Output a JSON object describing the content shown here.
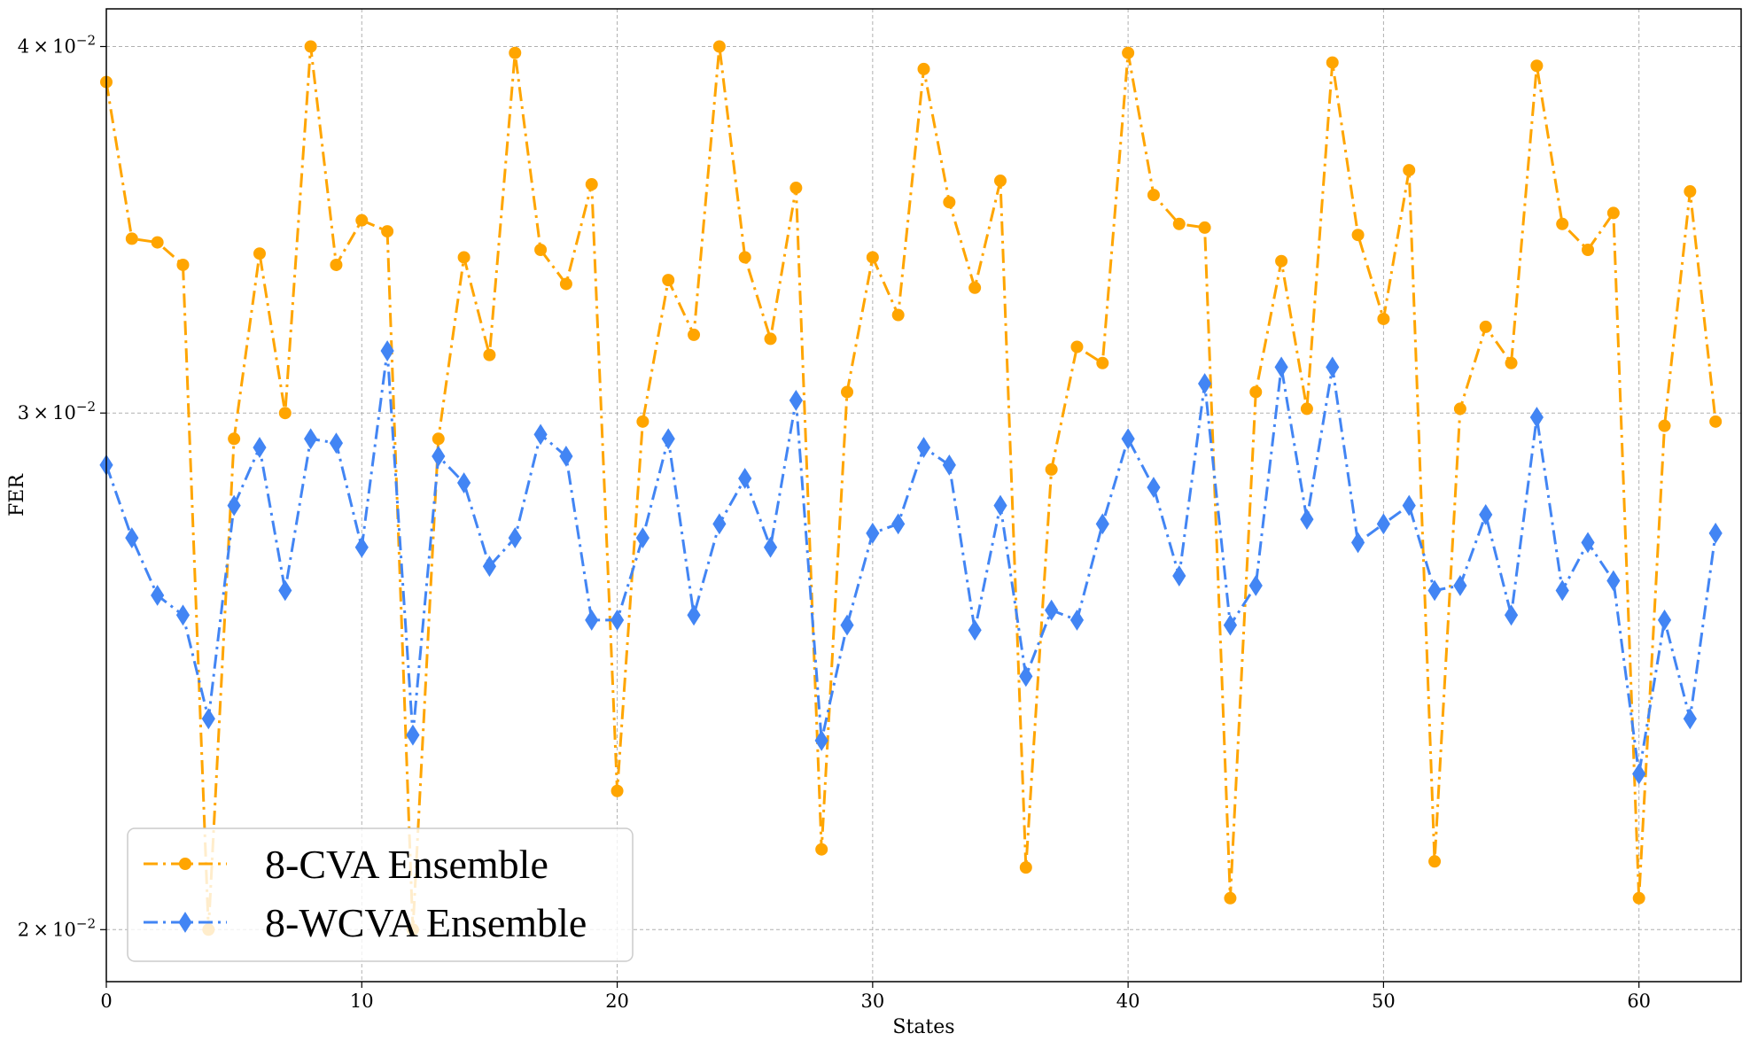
{
  "chart_data": {
    "type": "line",
    "xlabel": "States",
    "ylabel": "FER",
    "xlim": [
      0,
      64
    ],
    "ylim": [
      0.0192,
      0.0412
    ],
    "yscale": "log",
    "grid": true,
    "legend_position": "lower-left",
    "x_ticks": [
      0,
      10,
      20,
      30,
      40,
      50,
      60
    ],
    "x_tick_labels": [
      "0",
      "10",
      "20",
      "30",
      "40",
      "50",
      "60"
    ],
    "y_ticks": [
      0.02,
      0.03,
      0.04
    ],
    "y_tick_labels": [
      {
        "mantissa": "2",
        "times": "×",
        "base": "10",
        "exponent": "−2"
      },
      {
        "mantissa": "3",
        "times": "×",
        "base": "10",
        "exponent": "−2"
      },
      {
        "mantissa": "4",
        "times": "×",
        "base": "10",
        "exponent": "−2"
      }
    ],
    "x": [
      0,
      1,
      2,
      3,
      4,
      5,
      6,
      7,
      8,
      9,
      10,
      11,
      12,
      13,
      14,
      15,
      16,
      17,
      18,
      19,
      20,
      21,
      22,
      23,
      24,
      25,
      26,
      27,
      28,
      29,
      30,
      31,
      32,
      33,
      34,
      35,
      36,
      37,
      38,
      39,
      40,
      41,
      42,
      43,
      44,
      45,
      46,
      47,
      48,
      49,
      50,
      51,
      52,
      53,
      54,
      55,
      56,
      57,
      58,
      59,
      60,
      61,
      62,
      63
    ],
    "series": [
      {
        "name": "8-CVA Ensemble",
        "color": "#FFA500",
        "marker": "circle",
        "linestyle": "dash-dot",
        "values": [
          0.0389,
          0.0344,
          0.0343,
          0.0337,
          0.02,
          0.0294,
          0.034,
          0.03,
          0.04,
          0.0337,
          0.0349,
          0.0346,
          0.02,
          0.0294,
          0.0339,
          0.0314,
          0.0398,
          0.0341,
          0.0332,
          0.0359,
          0.0223,
          0.0298,
          0.0333,
          0.0319,
          0.04,
          0.0339,
          0.0318,
          0.0358,
          0.0213,
          0.0305,
          0.0339,
          0.0324,
          0.0393,
          0.0354,
          0.0331,
          0.036,
          0.021,
          0.0287,
          0.0316,
          0.0312,
          0.0398,
          0.0356,
          0.0348,
          0.0347,
          0.0205,
          0.0305,
          0.0338,
          0.0301,
          0.0395,
          0.0345,
          0.0323,
          0.0363,
          0.0211,
          0.0301,
          0.0321,
          0.0312,
          0.0394,
          0.0348,
          0.0341,
          0.0351,
          0.0205,
          0.0297,
          0.0357,
          0.0298
        ]
      },
      {
        "name": "8-WCVA Ensemble",
        "color": "#4285F4",
        "marker": "diamond",
        "linestyle": "dash-dot",
        "values": [
          0.0288,
          0.0272,
          0.026,
          0.0256,
          0.0236,
          0.0279,
          0.0292,
          0.0261,
          0.0294,
          0.0293,
          0.027,
          0.0315,
          0.0233,
          0.029,
          0.0284,
          0.0266,
          0.0272,
          0.0295,
          0.029,
          0.0255,
          0.0255,
          0.0272,
          0.0294,
          0.0256,
          0.0275,
          0.0285,
          0.027,
          0.0303,
          0.0232,
          0.0254,
          0.0273,
          0.0275,
          0.0292,
          0.0288,
          0.0253,
          0.0279,
          0.0244,
          0.0257,
          0.0255,
          0.0275,
          0.0294,
          0.0283,
          0.0264,
          0.0307,
          0.0254,
          0.0262,
          0.0311,
          0.0276,
          0.0311,
          0.0271,
          0.0275,
          0.0279,
          0.0261,
          0.0262,
          0.0277,
          0.0256,
          0.0299,
          0.0261,
          0.0271,
          0.0263,
          0.0226,
          0.0255,
          0.0236,
          0.0273
        ]
      }
    ]
  }
}
